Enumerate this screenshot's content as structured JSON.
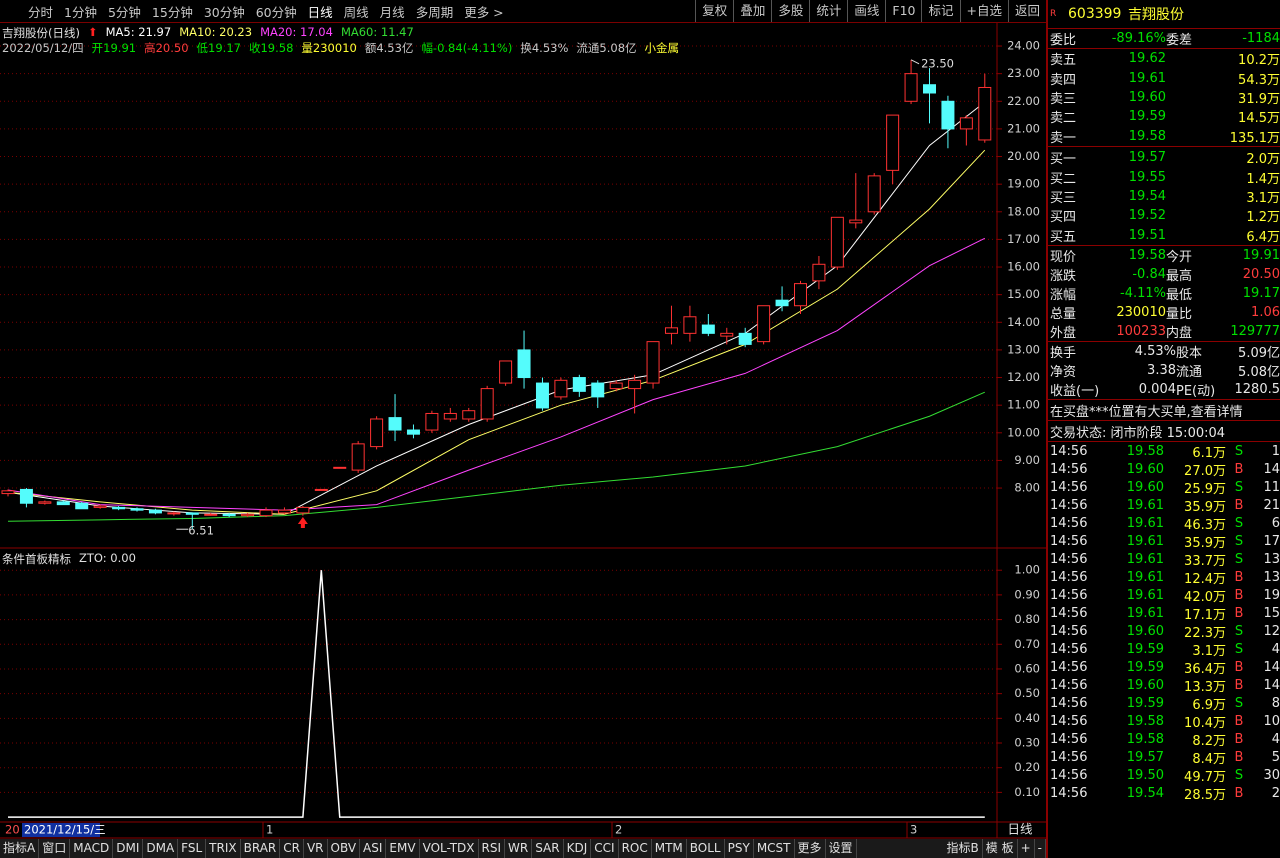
{
  "toolbar": {
    "left": [
      "分时",
      "1分钟",
      "5分钟",
      "15分钟",
      "30分钟",
      "60分钟",
      "日线",
      "周线",
      "月线",
      "多周期",
      "更多 >"
    ],
    "active": 6,
    "right": [
      "复权",
      "叠加",
      "多股",
      "统计",
      "画线",
      "F10",
      "标记",
      "+自选",
      "返回"
    ]
  },
  "chart": {
    "title": "吉翔股份(日线)",
    "info": [
      {
        "text": "2022/05/12/四",
        "color": "#c8c8c8"
      },
      {
        "text": "开19.91",
        "color": "#00e000"
      },
      {
        "text": "高20.50",
        "color": "#ff3c3c"
      },
      {
        "text": "低19.17",
        "color": "#00e000"
      },
      {
        "text": "收19.58",
        "color": "#00e000"
      },
      {
        "text": "量230010",
        "color": "#ffff33"
      },
      {
        "text": "额4.53亿",
        "color": "#c8c8c8"
      },
      {
        "text": "幅-0.84(-4.11%)",
        "color": "#00e000"
      },
      {
        "text": "换4.53%",
        "color": "#c8c8c8"
      },
      {
        "text": "流通5.08亿",
        "color": "#c8c8c8"
      },
      {
        "text": "小金属",
        "color": "#ffff33"
      }
    ],
    "ylim": [
      5.83,
      24.87
    ],
    "yticks": [
      {
        "value": 8,
        "label": "8.00"
      },
      {
        "value": 9,
        "label": "9.00"
      },
      {
        "value": 10,
        "label": "10.00"
      },
      {
        "value": 11,
        "label": "11.00"
      },
      {
        "value": 12,
        "label": "12.00"
      },
      {
        "value": 13,
        "label": "13.00"
      },
      {
        "value": 14,
        "label": "14.00"
      },
      {
        "value": 15,
        "label": "15.00"
      },
      {
        "value": 16,
        "label": "16.00"
      },
      {
        "value": 17,
        "label": "17.00"
      },
      {
        "value": 18,
        "label": "18.00"
      },
      {
        "value": 19,
        "label": "19.00"
      },
      {
        "value": 20,
        "label": "20.00"
      },
      {
        "value": 21,
        "label": "21.00"
      },
      {
        "value": 22,
        "label": "22.00"
      },
      {
        "value": 23,
        "label": "23.00"
      },
      {
        "value": 24,
        "label": "24.00"
      }
    ],
    "up_color": "#ff3232",
    "down_color": "#54fcfc",
    "ohlc": [
      [
        7.8,
        7.95,
        7.7,
        7.9
      ],
      [
        7.95,
        8.0,
        7.3,
        7.45
      ],
      [
        7.45,
        7.55,
        7.4,
        7.5
      ],
      [
        7.5,
        7.55,
        7.4,
        7.4
      ],
      [
        7.45,
        7.5,
        7.25,
        7.25
      ],
      [
        7.3,
        7.4,
        7.25,
        7.35
      ],
      [
        7.3,
        7.35,
        7.2,
        7.25
      ],
      [
        7.25,
        7.3,
        7.15,
        7.2
      ],
      [
        7.2,
        7.25,
        7.05,
        7.1
      ],
      [
        7.1,
        7.15,
        7.0,
        7.1
      ],
      [
        7.1,
        7.12,
        6.51,
        7.05
      ],
      [
        7.05,
        7.1,
        7.0,
        7.05
      ],
      [
        7.05,
        7.1,
        6.95,
        7.0
      ],
      [
        7.0,
        7.1,
        6.95,
        7.05
      ],
      [
        7.0,
        7.3,
        6.95,
        7.2
      ],
      [
        7.1,
        7.3,
        7.05,
        7.2
      ],
      [
        7.1,
        7.35,
        7.0,
        7.3
      ],
      [
        7.95,
        7.95,
        7.95,
        7.95
      ],
      [
        8.75,
        8.75,
        8.75,
        8.75
      ],
      [
        8.65,
        9.7,
        8.55,
        9.6
      ],
      [
        9.5,
        10.6,
        9.4,
        10.5
      ],
      [
        10.55,
        11.4,
        9.7,
        10.1
      ],
      [
        10.1,
        10.3,
        9.8,
        9.95
      ],
      [
        10.1,
        10.8,
        10.0,
        10.7
      ],
      [
        10.5,
        10.9,
        10.4,
        10.7
      ],
      [
        10.5,
        10.9,
        10.4,
        10.8
      ],
      [
        10.5,
        11.7,
        10.4,
        11.6
      ],
      [
        11.8,
        12.6,
        11.7,
        12.6
      ],
      [
        13.0,
        13.7,
        11.6,
        12.0
      ],
      [
        11.8,
        12.0,
        10.8,
        10.9
      ],
      [
        11.3,
        12.0,
        11.2,
        11.9
      ],
      [
        12.0,
        12.1,
        11.3,
        11.5
      ],
      [
        11.8,
        11.9,
        10.9,
        11.3
      ],
      [
        11.6,
        11.9,
        11.5,
        11.8
      ],
      [
        11.6,
        12.1,
        10.7,
        11.9
      ],
      [
        11.8,
        13.3,
        11.6,
        13.3
      ],
      [
        13.6,
        14.6,
        13.2,
        13.8
      ],
      [
        13.6,
        14.6,
        13.3,
        14.2
      ],
      [
        13.9,
        14.3,
        13.5,
        13.6
      ],
      [
        13.5,
        13.8,
        13.2,
        13.6
      ],
      [
        13.6,
        13.8,
        13.1,
        13.2
      ],
      [
        13.3,
        14.6,
        13.2,
        14.6
      ],
      [
        14.8,
        15.3,
        14.4,
        14.6
      ],
      [
        14.6,
        15.5,
        14.3,
        15.4
      ],
      [
        15.5,
        16.4,
        15.2,
        16.1
      ],
      [
        16.0,
        17.8,
        15.9,
        17.8
      ],
      [
        17.6,
        19.4,
        17.4,
        17.7
      ],
      [
        18.0,
        19.4,
        17.9,
        19.3
      ],
      [
        19.5,
        21.5,
        19.0,
        21.5
      ],
      [
        22.0,
        23.5,
        21.9,
        23.0
      ],
      [
        22.6,
        23.2,
        21.2,
        22.3
      ],
      [
        22.0,
        22.2,
        20.3,
        21.0
      ],
      [
        21.0,
        21.5,
        20.4,
        21.4
      ],
      [
        20.6,
        23.0,
        20.5,
        22.5
      ]
    ],
    "ma": {
      "idx": [
        0,
        5,
        10,
        15,
        20,
        25,
        30,
        35,
        40,
        45,
        50,
        53
      ],
      "series": [
        {
          "label": "MA5: 21.97",
          "color": "#ffffff",
          "values": [
            7.85,
            7.35,
            7.1,
            7.05,
            8.8,
            10.3,
            11.55,
            12.1,
            13.6,
            16.05,
            20.4,
            21.97
          ]
        },
        {
          "label": "MA10: 20.23",
          "color": "#ffff66",
          "values": [
            7.85,
            7.5,
            7.2,
            7.05,
            7.9,
            9.75,
            11.0,
            11.9,
            13.2,
            15.2,
            18.1,
            20.23
          ]
        },
        {
          "label": "MA20: 17.04",
          "color": "#ff44ff",
          "values": [
            7.93,
            7.4,
            7.3,
            7.2,
            7.4,
            8.65,
            9.85,
            11.2,
            12.15,
            13.7,
            16.05,
            17.04
          ]
        },
        {
          "label": "MA60: 11.47",
          "color": "#33dd33",
          "values": [
            6.8,
            6.85,
            6.9,
            7.0,
            7.3,
            7.7,
            8.1,
            8.4,
            8.8,
            9.5,
            10.6,
            11.47
          ]
        }
      ]
    },
    "high_label": {
      "text": "23.50",
      "candle": 49
    },
    "low_label": {
      "text": "6.51",
      "candle": 10
    }
  },
  "indicator": {
    "title": "条件首板精标",
    "value_text": "ZTO: 0.00",
    "ylim": [
      -0.02,
      1.09
    ],
    "yticks": [
      {
        "value": 0.1,
        "label": "0.10"
      },
      {
        "value": 0.2,
        "label": "0.20"
      },
      {
        "value": 0.3,
        "label": "0.30"
      },
      {
        "value": 0.4,
        "label": "0.40"
      },
      {
        "value": 0.5,
        "label": "0.50"
      },
      {
        "value": 0.6,
        "label": "0.60"
      },
      {
        "value": 0.7,
        "label": "0.70"
      },
      {
        "value": 0.8,
        "label": "0.80"
      },
      {
        "value": 0.9,
        "label": "0.90"
      },
      {
        "value": 1.0,
        "label": "1.00"
      }
    ],
    "values": [
      0,
      0,
      0,
      0,
      0,
      0,
      0,
      0,
      0,
      0,
      0,
      0,
      0,
      0,
      0,
      0,
      0,
      1,
      0,
      0,
      0,
      0,
      0,
      0,
      0,
      0,
      0,
      0,
      0,
      0,
      0,
      0,
      0,
      0,
      0,
      0,
      0,
      0,
      0,
      0,
      0,
      0,
      0,
      0,
      0,
      0,
      0,
      0,
      0,
      0,
      0,
      0,
      0,
      0
    ]
  },
  "xaxis": {
    "labels": [
      "20",
      "2021/12/15/三",
      "1",
      "2",
      "3"
    ],
    "period": "日线"
  },
  "tabs": {
    "left": [
      "指标A",
      "窗口",
      "MACD",
      "DMI",
      "DMA",
      "FSL",
      "TRIX",
      "BRAR",
      "CR",
      "VR",
      "OBV",
      "ASI",
      "EMV",
      "VOL-TDX",
      "RSI",
      "WR",
      "SAR",
      "KDJ",
      "CCI",
      "ROC",
      "MTM",
      "BOLL",
      "PSY",
      "MCST",
      "更多",
      "设置"
    ],
    "right": [
      "指标B",
      "模 板",
      "+",
      "-"
    ]
  },
  "quote": {
    "badge": "R",
    "code": "603399",
    "name": "吉翔股份",
    "weibi": [
      "委比",
      "-89.16%",
      "委差",
      "-1184"
    ],
    "sell": [
      [
        "卖五",
        "19.62",
        "10.2万"
      ],
      [
        "卖四",
        "19.61",
        "54.3万"
      ],
      [
        "卖三",
        "19.60",
        "31.9万"
      ],
      [
        "卖二",
        "19.59",
        "14.5万"
      ],
      [
        "卖一",
        "19.58",
        "135.1万"
      ]
    ],
    "buy": [
      [
        "买一",
        "19.57",
        "2.0万"
      ],
      [
        "买二",
        "19.55",
        "1.4万"
      ],
      [
        "买三",
        "19.54",
        "3.1万"
      ],
      [
        "买四",
        "19.52",
        "1.2万"
      ],
      [
        "买五",
        "19.51",
        "6.4万"
      ]
    ],
    "stats": [
      [
        "现价",
        "19.58",
        "今开",
        "19.91"
      ],
      [
        "涨跌",
        "-0.84",
        "最高",
        "20.50"
      ],
      [
        "涨幅",
        "-4.11%",
        "最低",
        "19.17"
      ],
      [
        "总量",
        "230010",
        "量比",
        "1.06"
      ],
      [
        "外盘",
        "100233",
        "内盘",
        "129777"
      ]
    ],
    "stats_colors": [
      [
        "#00e000",
        "#00e000"
      ],
      [
        "#00e000",
        "#ff3c3c"
      ],
      [
        "#00e000",
        "#00e000"
      ],
      [
        "#ffff33",
        "#ff3c3c"
      ],
      [
        "#ff3c3c",
        "#00e000"
      ]
    ],
    "fund": [
      [
        "换手",
        "4.53%",
        "股本",
        "5.09亿"
      ],
      [
        "净资",
        "3.38",
        "流通",
        "5.08亿"
      ],
      [
        "收益(一)",
        "0.004",
        "PE(动)",
        "1280.5"
      ]
    ],
    "notice": "在买盘***位置有大买单,查看详情",
    "status": "交易状态: 闭市阶段 15:00:04",
    "ticks": [
      [
        "14:56",
        "19.58",
        "6.1万",
        "S",
        "1"
      ],
      [
        "14:56",
        "19.60",
        "27.0万",
        "B",
        "14"
      ],
      [
        "14:56",
        "19.60",
        "25.9万",
        "S",
        "11"
      ],
      [
        "14:56",
        "19.61",
        "35.9万",
        "B",
        "21"
      ],
      [
        "14:56",
        "19.61",
        "46.3万",
        "S",
        "6"
      ],
      [
        "14:56",
        "19.61",
        "35.9万",
        "S",
        "17"
      ],
      [
        "14:56",
        "19.61",
        "33.7万",
        "S",
        "13"
      ],
      [
        "14:56",
        "19.61",
        "12.4万",
        "B",
        "13"
      ],
      [
        "14:56",
        "19.61",
        "42.0万",
        "B",
        "19"
      ],
      [
        "14:56",
        "19.61",
        "17.1万",
        "B",
        "15"
      ],
      [
        "14:56",
        "19.60",
        "22.3万",
        "S",
        "12"
      ],
      [
        "14:56",
        "19.59",
        "3.1万",
        "S",
        "4"
      ],
      [
        "14:56",
        "19.59",
        "36.4万",
        "B",
        "14"
      ],
      [
        "14:56",
        "19.60",
        "13.3万",
        "B",
        "14"
      ],
      [
        "14:56",
        "19.59",
        "6.9万",
        "S",
        "8"
      ],
      [
        "14:56",
        "19.58",
        "10.4万",
        "B",
        "10"
      ],
      [
        "14:56",
        "19.58",
        "8.2万",
        "B",
        "4"
      ],
      [
        "14:56",
        "19.57",
        "8.4万",
        "B",
        "5"
      ],
      [
        "14:56",
        "19.50",
        "49.7万",
        "S",
        "30"
      ],
      [
        "14:56",
        "19.54",
        "28.5万",
        "B",
        "2"
      ]
    ]
  }
}
